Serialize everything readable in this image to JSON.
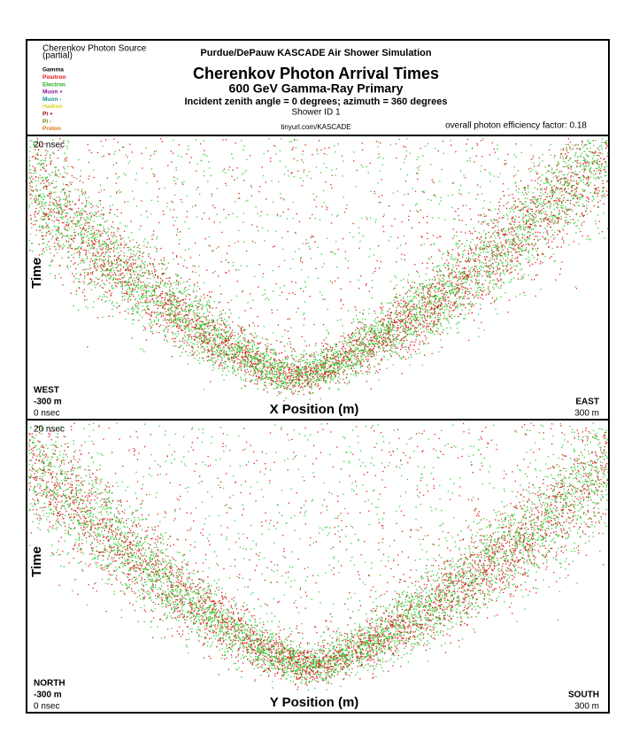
{
  "header": {
    "source_title": "Cherenkov Photon Source",
    "source_note": "(partial)",
    "legend": [
      {
        "label": "Gamma",
        "color": "#000000"
      },
      {
        "label": "Positron",
        "color": "#e01010"
      },
      {
        "label": "Electron",
        "color": "#20b020"
      },
      {
        "label": "Muon +",
        "color": "#9010a0"
      },
      {
        "label": "Muon -",
        "color": "#109090"
      },
      {
        "label": "Hadron",
        "color": "#e0d020"
      },
      {
        "label": "Pi +",
        "color": "#901010"
      },
      {
        "label": "Pi -",
        "color": "#708010"
      },
      {
        "label": "Proton",
        "color": "#e07010"
      }
    ],
    "lab": "Purdue/DePauw KASCADE Air Shower Simulation",
    "title": "Cherenkov Photon Arrival Times",
    "subtitle": "600 GeV Gamma-Ray Primary",
    "incidence": "Incident zenith angle =  0 degrees;  azimuth =  360 degrees",
    "shower_id": "Shower ID 1",
    "url": "tinyurl.com/KASCADE",
    "efficiency": "overall photon efficiency factor: 0.18"
  },
  "panels": [
    {
      "time_top": "20 nsec",
      "y_label": "Time",
      "left_dir": "WEST",
      "left_pos": "-300 m",
      "time_bottom": "0 nsec",
      "x_label": "X Position (m)",
      "right_dir": "EAST",
      "right_pos": "300 m"
    },
    {
      "time_top": "20 nsec",
      "y_label": "Time",
      "left_dir": "NORTH",
      "left_pos": "-300 m",
      "time_bottom": "0 nsec",
      "x_label": "Y Position (m)",
      "right_dir": "SOUTH",
      "right_pos": "300 m"
    }
  ]
}
